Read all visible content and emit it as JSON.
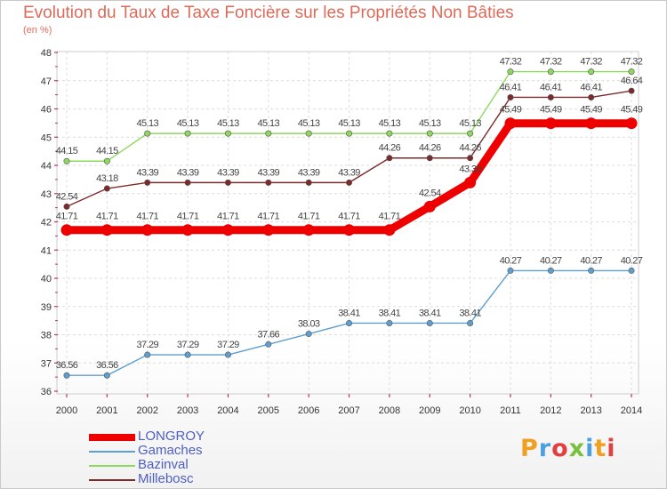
{
  "chart_data": {
    "type": "line",
    "title": "Evolution du Taux de Taxe Foncière sur les Propriétés Non Bâties",
    "subtitle": "(en %)",
    "x": [
      "2000",
      "2001",
      "2002",
      "2003",
      "2004",
      "2005",
      "2006",
      "2007",
      "2008",
      "2009",
      "2010",
      "2011",
      "2012",
      "2013",
      "2014"
    ],
    "ylim": [
      36,
      48
    ],
    "yticks": [
      "36",
      "37",
      "38",
      "39",
      "40",
      "41",
      "42",
      "43",
      "44",
      "45",
      "46",
      "47",
      "48"
    ],
    "series": [
      {
        "name": "Gamaches",
        "color": "#5f9fcf",
        "values": [
          36.56,
          36.56,
          37.29,
          37.29,
          37.29,
          37.66,
          38.03,
          38.41,
          38.41,
          38.41,
          38.41,
          40.27,
          40.27,
          40.27,
          40.27
        ],
        "labels": [
          "36.56",
          "36.56",
          "37.29",
          "37.29",
          "37.29",
          "37.66",
          "38.03",
          "38.41",
          "38.41",
          "38.41",
          "38.41",
          "40.27",
          "40.27",
          "40.27",
          "40.27"
        ]
      },
      {
        "name": "Bazinval",
        "color": "#8fd860",
        "values": [
          44.15,
          44.15,
          45.13,
          45.13,
          45.13,
          45.13,
          45.13,
          45.13,
          45.13,
          45.13,
          45.13,
          47.32,
          47.32,
          47.32,
          47.32
        ],
        "labels": [
          "44.15",
          "44.15",
          "45.13",
          "45.13",
          "45.13",
          "45.13",
          "45.13",
          "45.13",
          "45.13",
          "45.13",
          "45.13",
          "47.32",
          "47.32",
          "47.32",
          "47.32"
        ]
      },
      {
        "name": "Millebosc",
        "color": "#7d2a2a",
        "values": [
          42.54,
          43.18,
          43.39,
          43.39,
          43.39,
          43.39,
          43.39,
          43.39,
          44.26,
          44.26,
          44.26,
          46.41,
          46.41,
          46.41,
          46.64
        ],
        "labels": [
          "42.54",
          "43.18",
          "43.39",
          "43.39",
          "43.39",
          "43.39",
          "43.39",
          "43.39",
          "44.26",
          "44.26",
          "44.26",
          "46.41",
          "46.41",
          "46.41",
          "46.64"
        ]
      },
      {
        "name": "LONGROY",
        "color": "#ee0000",
        "values": [
          41.71,
          41.71,
          41.71,
          41.71,
          41.71,
          41.71,
          41.71,
          41.71,
          41.71,
          42.54,
          43.39,
          45.49,
          45.49,
          45.49,
          45.49
        ],
        "labels": [
          "41.71",
          "41.71",
          "41.71",
          "41.71",
          "41.71",
          "41.71",
          "41.71",
          "41.71",
          "41.71",
          "42.54",
          "43.39",
          "45.49",
          "45.49",
          "45.49",
          "45.49"
        ]
      }
    ],
    "legend": [
      {
        "name": "LONGROY",
        "color": "#ee0000"
      },
      {
        "name": "Gamaches",
        "color": "#5f9fcf"
      },
      {
        "name": "Bazinval",
        "color": "#8fd860"
      },
      {
        "name": "Millebosc",
        "color": "#7d2a2a"
      }
    ]
  },
  "brand": {
    "logo_letters": [
      "P",
      "r",
      "o",
      "x",
      "i",
      "t",
      "i"
    ],
    "logo_colors": [
      "#f0a020",
      "#4aa0e0",
      "#e04040",
      "#7ac040",
      "#4aa0e0",
      "#f0a020",
      "#e04040"
    ]
  }
}
